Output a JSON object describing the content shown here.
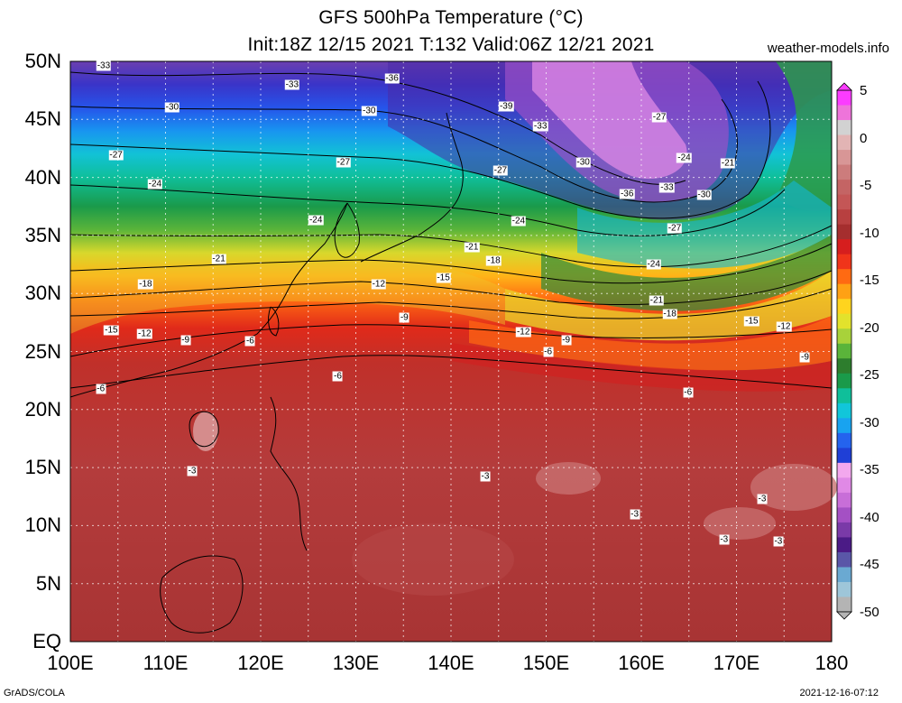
{
  "header": {
    "title_line1": "GFS 500hPa Temperature (°C)",
    "title_line2": "Init:18Z 12/15 2021 T:132 Valid:06Z 12/21 2021",
    "site": "weather-models.info"
  },
  "axes": {
    "lat_labels": [
      "50N",
      "45N",
      "40N",
      "35N",
      "30N",
      "25N",
      "20N",
      "15N",
      "10N",
      "5N",
      "EQ"
    ],
    "lon_labels": [
      "100E",
      "110E",
      "120E",
      "130E",
      "140E",
      "150E",
      "160E",
      "170E",
      "180"
    ]
  },
  "colorbar": {
    "labels": [
      "5",
      "0",
      "-5",
      "-10",
      "-15",
      "-20",
      "-25",
      "-30",
      "-35",
      "-40",
      "-45",
      "-50"
    ],
    "colors": [
      "#b4b4b4",
      "#9ec6d9",
      "#6aa9d2",
      "#5a56a8",
      "#4b1b86",
      "#7a3aa8",
      "#a450c4",
      "#c86ed8",
      "#e089e6",
      "#f3a8ee",
      "#1f3fd6",
      "#2463ee",
      "#18a3f0",
      "#11c6da",
      "#0fbf9a",
      "#1a9a4a",
      "#2d7d2d",
      "#5ab43a",
      "#a8d23a",
      "#e2e22c",
      "#ffd41e",
      "#ffa114",
      "#ff6a12",
      "#f0341a",
      "#d61e1e",
      "#a52e2e",
      "#b84040",
      "#c45656",
      "#c46464",
      "#cc7c7c",
      "#d89696",
      "#e2b4b4",
      "#d2d2d2",
      "#ee74da",
      "#fb3cff"
    ]
  },
  "contour_labels": [
    {
      "text": "-33",
      "lon": 103.5,
      "lat": 49.6
    },
    {
      "text": "-33",
      "lon": 123.3,
      "lat": 48.0
    },
    {
      "text": "-36",
      "lon": 133.8,
      "lat": 48.5
    },
    {
      "text": "-30",
      "lon": 110.7,
      "lat": 46.0
    },
    {
      "text": "-30",
      "lon": 131.4,
      "lat": 45.7
    },
    {
      "text": "-39",
      "lon": 145.8,
      "lat": 46.1
    },
    {
      "text": "-33",
      "lon": 149.4,
      "lat": 44.4
    },
    {
      "text": "-27",
      "lon": 161.9,
      "lat": 45.2
    },
    {
      "text": "-27",
      "lon": 104.8,
      "lat": 41.9
    },
    {
      "text": "-27",
      "lon": 128.7,
      "lat": 41.3
    },
    {
      "text": "-27",
      "lon": 145.2,
      "lat": 40.6
    },
    {
      "text": "-30",
      "lon": 153.9,
      "lat": 41.3
    },
    {
      "text": "-24",
      "lon": 164.5,
      "lat": 41.7
    },
    {
      "text": "-21",
      "lon": 169.1,
      "lat": 41.2
    },
    {
      "text": "-24",
      "lon": 108.9,
      "lat": 39.4
    },
    {
      "text": "-36",
      "lon": 158.5,
      "lat": 38.6
    },
    {
      "text": "-33",
      "lon": 162.7,
      "lat": 39.1
    },
    {
      "text": "-30",
      "lon": 166.6,
      "lat": 38.5
    },
    {
      "text": "-24",
      "lon": 125.8,
      "lat": 36.3
    },
    {
      "text": "-24",
      "lon": 147.1,
      "lat": 36.2
    },
    {
      "text": "-27",
      "lon": 163.5,
      "lat": 35.6
    },
    {
      "text": "-21",
      "lon": 142.2,
      "lat": 34.0
    },
    {
      "text": "-21",
      "lon": 115.6,
      "lat": 33.0
    },
    {
      "text": "-18",
      "lon": 144.5,
      "lat": 32.8
    },
    {
      "text": "-24",
      "lon": 161.3,
      "lat": 32.5
    },
    {
      "text": "-18",
      "lon": 107.9,
      "lat": 30.8
    },
    {
      "text": "-12",
      "lon": 132.4,
      "lat": 30.8
    },
    {
      "text": "-15",
      "lon": 139.2,
      "lat": 31.3
    },
    {
      "text": "-21",
      "lon": 161.6,
      "lat": 29.4
    },
    {
      "text": "-18",
      "lon": 163.0,
      "lat": 28.2
    },
    {
      "text": "-9",
      "lon": 135.1,
      "lat": 27.9
    },
    {
      "text": "-15",
      "lon": 171.6,
      "lat": 27.6
    },
    {
      "text": "-12",
      "lon": 175.0,
      "lat": 27.1
    },
    {
      "text": "-15",
      "lon": 104.3,
      "lat": 26.8
    },
    {
      "text": "-12",
      "lon": 107.8,
      "lat": 26.5
    },
    {
      "text": "-9",
      "lon": 112.1,
      "lat": 26.0
    },
    {
      "text": "-6",
      "lon": 118.9,
      "lat": 25.9
    },
    {
      "text": "-12",
      "lon": 147.6,
      "lat": 26.7
    },
    {
      "text": "-9",
      "lon": 152.1,
      "lat": 26.0
    },
    {
      "text": "-6",
      "lon": 150.2,
      "lat": 25.0
    },
    {
      "text": "-9",
      "lon": 177.2,
      "lat": 24.5
    },
    {
      "text": "-6",
      "lon": 128.1,
      "lat": 22.9
    },
    {
      "text": "-6",
      "lon": 164.9,
      "lat": 21.5
    },
    {
      "text": "-6",
      "lon": 103.2,
      "lat": 21.8
    },
    {
      "text": "-3",
      "lon": 112.8,
      "lat": 14.7
    },
    {
      "text": "-3",
      "lon": 143.6,
      "lat": 14.2
    },
    {
      "text": "-3",
      "lon": 159.3,
      "lat": 11.0
    },
    {
      "text": "-3",
      "lon": 172.7,
      "lat": 12.3
    },
    {
      "text": "-3",
      "lon": 174.4,
      "lat": 8.6
    },
    {
      "text": "-3",
      "lon": 168.7,
      "lat": 8.8
    }
  ],
  "footer": {
    "left": "GrADS/COLA",
    "right": "2021-12-16-07:12"
  }
}
